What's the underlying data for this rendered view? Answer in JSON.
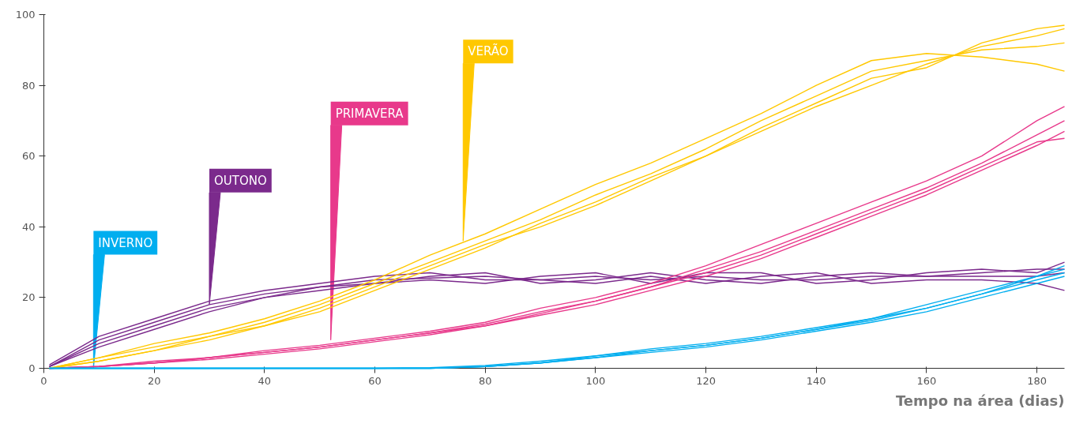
{
  "chart_data": {
    "type": "line",
    "xlabel": "Tempo na área (dias)",
    "x": [
      1,
      10,
      20,
      30,
      40,
      50,
      60,
      70,
      80,
      90,
      100,
      110,
      120,
      130,
      140,
      150,
      160,
      170,
      180,
      185
    ],
    "xlim": [
      0,
      185
    ],
    "xticks": [
      0,
      20,
      40,
      60,
      80,
      100,
      120,
      140,
      160,
      180
    ],
    "ylim": [
      0,
      100
    ],
    "yticks": [
      0,
      20,
      40,
      60,
      80,
      100
    ],
    "grid": false,
    "marker": "none",
    "line_style": "solid",
    "series": [
      {
        "color": "#7b2a8c",
        "values": [
          0.5,
          8,
          13,
          18,
          21,
          23,
          25,
          25.5,
          26,
          25,
          26,
          25,
          26,
          25,
          25,
          26,
          26,
          26,
          26,
          27
        ]
      },
      {
        "color": "#7b2a8c",
        "values": [
          0.5,
          7,
          12,
          17,
          20,
          22,
          24,
          25,
          24,
          26,
          27,
          24,
          27,
          27,
          24,
          25,
          27,
          28,
          27,
          30
        ]
      },
      {
        "color": "#7b2a8c",
        "values": [
          1,
          9,
          14,
          19,
          22,
          24,
          26,
          27,
          25,
          25,
          24,
          26,
          24,
          26,
          27,
          24,
          25,
          25,
          24,
          22
        ]
      },
      {
        "color": "#7b2a8c",
        "values": [
          0.5,
          6,
          11,
          16,
          20,
          23,
          24,
          26,
          27,
          24,
          25,
          27,
          25,
          24,
          26,
          27,
          26,
          27,
          28,
          28
        ]
      },
      {
        "color": "#e8398b",
        "values": [
          0,
          0.5,
          1.5,
          3,
          4.5,
          6,
          8,
          10,
          12.5,
          16,
          19,
          23,
          28,
          33,
          39,
          45,
          51,
          58,
          66,
          70
        ]
      },
      {
        "color": "#e8398b",
        "values": [
          0,
          0.5,
          1.5,
          2.5,
          4,
          5.5,
          7.5,
          9.5,
          12,
          15,
          18,
          22,
          26,
          31,
          37,
          43,
          49,
          56,
          63,
          67
        ]
      },
      {
        "color": "#e8398b",
        "values": [
          0,
          0.5,
          2,
          3,
          5,
          6.5,
          8.5,
          10.5,
          13,
          17,
          20,
          24,
          29,
          35,
          41,
          47,
          53,
          60,
          70,
          74
        ]
      },
      {
        "color": "#e8398b",
        "values": [
          0,
          0.5,
          1.5,
          3,
          4.5,
          6,
          8,
          10,
          12,
          15.5,
          19,
          23,
          27,
          32,
          38,
          44,
          50,
          57,
          64,
          65
        ]
      },
      {
        "color": "#ffc800",
        "values": [
          0,
          3,
          6,
          9,
          13,
          18,
          24,
          30,
          36,
          42,
          49,
          55,
          62,
          70,
          77,
          84,
          87,
          90,
          91,
          92
        ]
      },
      {
        "color": "#ffc800",
        "values": [
          0,
          2,
          5,
          8,
          12,
          16,
          22,
          28,
          34,
          41,
          47,
          54,
          60,
          67,
          74,
          80,
          86,
          91,
          94,
          96
        ]
      },
      {
        "color": "#ffc800",
        "values": [
          0,
          3,
          7,
          10,
          14,
          19,
          25,
          32,
          38,
          45,
          52,
          58,
          65,
          72,
          80,
          87,
          89,
          88,
          86,
          84
        ]
      },
      {
        "color": "#ffc800",
        "values": [
          0,
          2,
          5,
          9,
          12,
          17,
          23,
          29,
          35,
          40,
          46,
          53,
          60,
          68,
          75,
          82,
          85,
          92,
          96,
          97
        ]
      },
      {
        "color": "#00aeef",
        "values": [
          0,
          0,
          0,
          0,
          0,
          0,
          0,
          0,
          0.5,
          1.5,
          3,
          5,
          6.5,
          8.5,
          11,
          13.5,
          17,
          21,
          25,
          27
        ]
      },
      {
        "color": "#00aeef",
        "values": [
          0,
          0,
          0,
          0,
          0,
          0,
          0,
          0,
          0.5,
          1.5,
          3.5,
          5.5,
          7,
          9,
          11.5,
          14,
          18,
          22,
          26,
          28
        ]
      },
      {
        "color": "#00aeef",
        "values": [
          0,
          0,
          0,
          0,
          0,
          0,
          0,
          0,
          0.5,
          1.5,
          3,
          4.5,
          6,
          8,
          10.5,
          13,
          16,
          20,
          24,
          26
        ]
      },
      {
        "color": "#00aeef",
        "values": [
          0,
          0,
          0,
          0,
          0,
          0,
          0,
          0.2,
          0.8,
          2,
          3.5,
          5,
          6.5,
          8.5,
          11,
          14,
          17,
          21,
          26,
          29
        ]
      }
    ],
    "annotations": [
      {
        "text": "OUTONO",
        "x": 30,
        "y": 18
      },
      {
        "text": "PRIMAVERA",
        "x": 52,
        "y": 8
      },
      {
        "text": "VERÃO",
        "x": 76,
        "y": 36
      },
      {
        "text": "INVERNO",
        "x": 9,
        "y": 0
      }
    ]
  }
}
